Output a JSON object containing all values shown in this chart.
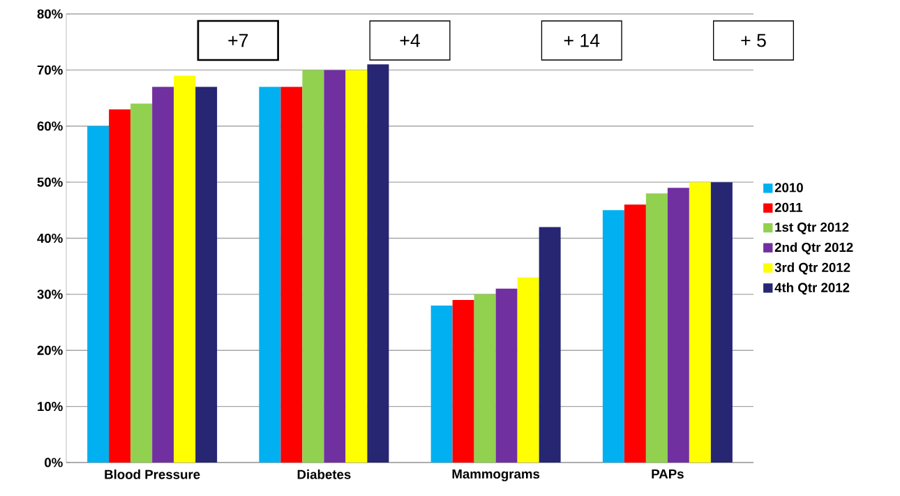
{
  "chart_data": {
    "type": "bar",
    "categories": [
      "Blood Pressure",
      "Diabetes",
      "Mammograms",
      "PAPs"
    ],
    "series": [
      {
        "name": "2010",
        "color": "#00b0f0",
        "values": [
          60,
          67,
          28,
          45
        ]
      },
      {
        "name": "2011",
        "color": "#ff0000",
        "values": [
          63,
          67,
          29,
          46
        ]
      },
      {
        "name": "1st Qtr 2012",
        "color": "#92d050",
        "values": [
          64,
          70,
          30,
          48
        ]
      },
      {
        "name": "2nd Qtr 2012",
        "color": "#7030a0",
        "values": [
          67,
          70,
          31,
          49
        ]
      },
      {
        "name": "3rd Qtr 2012",
        "color": "#ffff00",
        "values": [
          69,
          70,
          33,
          50
        ]
      },
      {
        "name": "4th Qtr 2012",
        "color": "#262673",
        "values": [
          67,
          71,
          42,
          50
        ]
      }
    ],
    "ylim": [
      0,
      80
    ],
    "yticks": [
      {
        "value": 0,
        "label": "0%"
      },
      {
        "value": 10,
        "label": "10%"
      },
      {
        "value": 20,
        "label": "20%"
      },
      {
        "value": 30,
        "label": "30%"
      },
      {
        "value": 40,
        "label": "40%"
      },
      {
        "value": 50,
        "label": "50%"
      },
      {
        "value": 60,
        "label": "60%"
      },
      {
        "value": 70,
        "label": "70%"
      },
      {
        "value": 80,
        "label": "80%"
      }
    ],
    "annotations": [
      "+7",
      "+4",
      "+ 14",
      "+ 5"
    ],
    "grid": "y",
    "legend": "right"
  }
}
